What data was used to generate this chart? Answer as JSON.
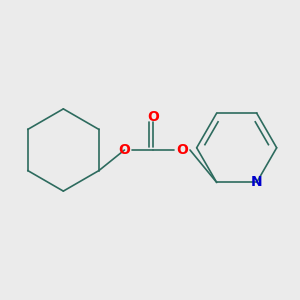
{
  "background_color": "#ebebeb",
  "bond_color": "#2d6b5e",
  "atom_colors": {
    "O": "#ff0000",
    "N": "#0000cc"
  },
  "line_width": 1.2,
  "figsize": [
    3.0,
    3.0
  ],
  "dpi": 100,
  "xlim": [
    0.15,
    2.85
  ],
  "ylim": [
    0.9,
    2.1
  ]
}
